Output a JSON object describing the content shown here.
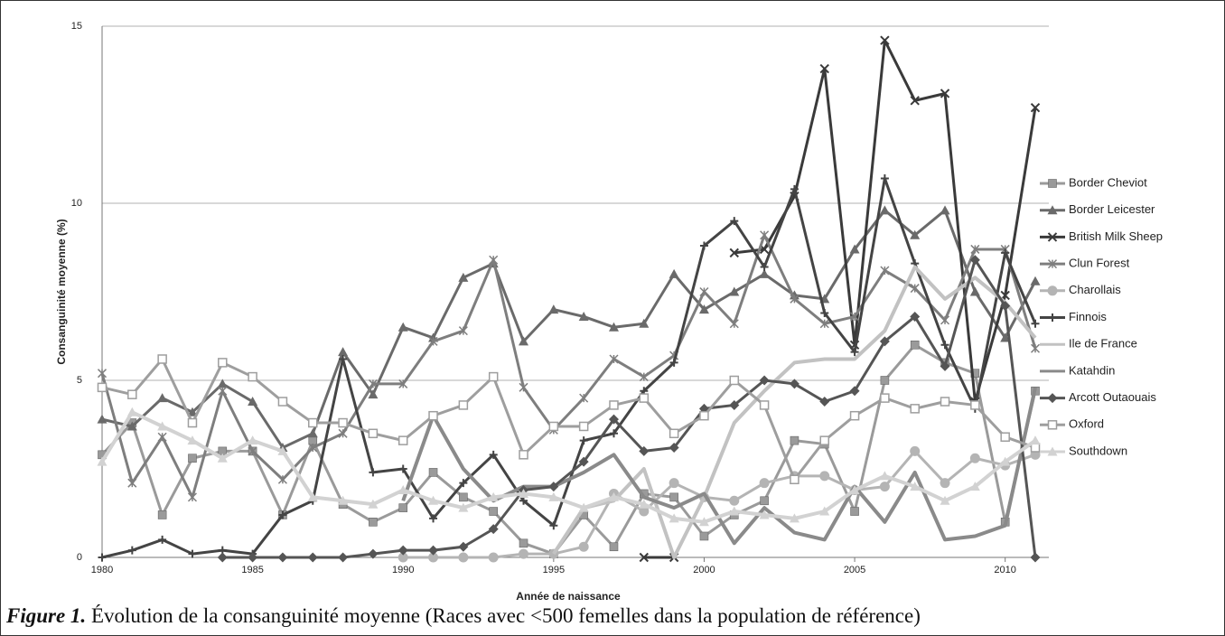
{
  "chart_data": {
    "type": "line",
    "ylabel": "Consanguinité moyenne (%)",
    "xlabel": "Année de naissance",
    "caption_label": "Figure 1.",
    "caption": "Évolution de la consanguinité moyenne (Races avec <500 femelles dans la population de référence)",
    "x": [
      1980,
      1981,
      1982,
      1983,
      1984,
      1985,
      1986,
      1987,
      1988,
      1989,
      1990,
      1991,
      1992,
      1993,
      1994,
      1995,
      1996,
      1997,
      1998,
      1999,
      2000,
      2001,
      2002,
      2003,
      2004,
      2005,
      2006,
      2007,
      2008,
      2009,
      2010,
      2011
    ],
    "xlim": [
      1980,
      2011
    ],
    "xticks": [
      1980,
      1985,
      1990,
      1995,
      2000,
      2005,
      2010
    ],
    "ylim": [
      0,
      15
    ],
    "yticks": [
      0,
      5,
      10,
      15
    ],
    "grid": true,
    "legend": "right",
    "series": [
      {
        "name": "Border Cheviot",
        "color": "#9a9a9a",
        "marker": "square",
        "values": [
          2.9,
          3.8,
          1.2,
          2.8,
          3.0,
          3.0,
          1.2,
          3.3,
          1.5,
          1.0,
          1.4,
          2.4,
          1.7,
          1.3,
          0.4,
          0.1,
          1.2,
          0.3,
          1.8,
          1.7,
          0.6,
          1.2,
          1.6,
          3.3,
          3.2,
          1.3,
          5.0,
          6.0,
          5.5,
          5.2,
          1.0,
          4.7
        ]
      },
      {
        "name": "Border Leicester",
        "color": "#6a6a6a",
        "marker": "triangle",
        "values": [
          3.9,
          3.7,
          4.5,
          4.1,
          4.9,
          4.4,
          3.1,
          3.5,
          5.8,
          4.6,
          6.5,
          6.2,
          7.9,
          8.3,
          6.1,
          7.0,
          6.8,
          6.5,
          6.6,
          8.0,
          7.0,
          7.5,
          8.0,
          7.4,
          7.3,
          8.7,
          9.8,
          9.1,
          9.8,
          7.5,
          6.2,
          7.8
        ]
      },
      {
        "name": "British Milk Sheep",
        "color": "#3a3a3a",
        "marker": "x",
        "values": [
          null,
          null,
          null,
          null,
          null,
          null,
          null,
          null,
          null,
          null,
          null,
          null,
          null,
          null,
          null,
          null,
          null,
          null,
          0,
          0,
          null,
          8.6,
          8.7,
          10.2,
          13.8,
          6.0,
          14.6,
          12.9,
          13.1,
          4.4,
          7.4,
          12.7
        ]
      },
      {
        "name": "Clun Forest",
        "color": "#7e7e7e",
        "marker": "asterisk",
        "values": [
          5.2,
          2.1,
          3.4,
          1.7,
          4.7,
          3.0,
          2.2,
          3.1,
          3.5,
          4.9,
          4.9,
          6.1,
          6.4,
          8.4,
          4.8,
          3.6,
          4.5,
          5.6,
          5.1,
          5.7,
          7.5,
          6.6,
          9.1,
          7.3,
          6.6,
          6.8,
          8.1,
          7.6,
          6.7,
          8.7,
          8.7,
          5.9
        ]
      },
      {
        "name": "Charollais",
        "color": "#b4b4b4",
        "marker": "circle",
        "values": [
          null,
          null,
          null,
          null,
          null,
          null,
          null,
          null,
          null,
          null,
          0,
          0,
          0,
          0,
          0.1,
          0.1,
          0.3,
          1.8,
          1.3,
          2.1,
          1.7,
          1.6,
          2.1,
          2.3,
          2.3,
          1.9,
          2.0,
          3.0,
          2.1,
          2.8,
          2.6,
          2.9
        ]
      },
      {
        "name": "Finnois",
        "color": "#444444",
        "marker": "plus",
        "values": [
          0,
          0.2,
          0.5,
          0.1,
          0.2,
          0.1,
          1.2,
          1.6,
          5.6,
          2.4,
          2.5,
          1.1,
          2.1,
          2.9,
          1.6,
          0.9,
          3.3,
          3.5,
          4.7,
          5.5,
          8.8,
          9.5,
          8.2,
          10.4,
          6.9,
          5.8,
          10.7,
          8.3,
          6.0,
          4.2,
          8.6,
          6.6
        ]
      },
      {
        "name": "Ile de France",
        "color": "#c2c2c2",
        "marker": "none",
        "values": [
          null,
          null,
          null,
          null,
          null,
          null,
          null,
          null,
          null,
          null,
          null,
          null,
          null,
          null,
          null,
          0.1,
          1.4,
          1.6,
          2.5,
          0.0,
          1.7,
          3.8,
          4.7,
          5.5,
          5.6,
          5.6,
          6.4,
          8.2,
          7.3,
          7.9,
          7.2,
          6.2
        ]
      },
      {
        "name": "Katahdin",
        "color": "#8a8a8a",
        "marker": "none",
        "values": [
          null,
          null,
          null,
          null,
          null,
          null,
          null,
          null,
          null,
          null,
          1.6,
          4.0,
          2.5,
          1.6,
          2.0,
          2.0,
          2.4,
          2.9,
          1.7,
          1.4,
          1.8,
          0.4,
          1.4,
          0.7,
          0.5,
          2.0,
          1.0,
          2.4,
          0.5,
          0.6,
          0.9,
          4.8
        ]
      },
      {
        "name": "Arcott Outaouais",
        "color": "#555555",
        "marker": "diamond",
        "values": [
          null,
          null,
          null,
          null,
          0,
          0,
          0,
          0,
          0,
          0.1,
          0.2,
          0.2,
          0.3,
          0.8,
          1.9,
          2.0,
          2.7,
          3.9,
          3.0,
          3.1,
          4.2,
          4.3,
          5.0,
          4.9,
          4.4,
          4.7,
          6.1,
          6.8,
          5.4,
          8.4,
          7.1,
          0
        ]
      },
      {
        "name": "Oxford",
        "color": "#9e9e9e",
        "marker": "open-square",
        "values": [
          4.8,
          4.6,
          5.6,
          3.8,
          5.5,
          5.1,
          4.4,
          3.8,
          3.8,
          3.5,
          3.3,
          4.0,
          4.3,
          5.1,
          2.9,
          3.7,
          3.7,
          4.3,
          4.5,
          3.5,
          4.0,
          5.0,
          4.3,
          2.2,
          3.3,
          4.0,
          4.5,
          4.2,
          4.4,
          4.3,
          3.4,
          3.1
        ]
      },
      {
        "name": "Southdown",
        "color": "#d2d2d2",
        "marker": "triangle",
        "values": [
          2.7,
          4.1,
          3.7,
          3.3,
          2.8,
          3.3,
          3.0,
          1.7,
          1.6,
          1.5,
          1.9,
          1.6,
          1.4,
          1.7,
          1.8,
          1.7,
          1.4,
          1.7,
          1.5,
          1.1,
          1.0,
          1.3,
          1.2,
          1.1,
          1.3,
          1.9,
          2.3,
          2.0,
          1.6,
          2.0,
          2.7,
          3.3
        ]
      }
    ]
  }
}
